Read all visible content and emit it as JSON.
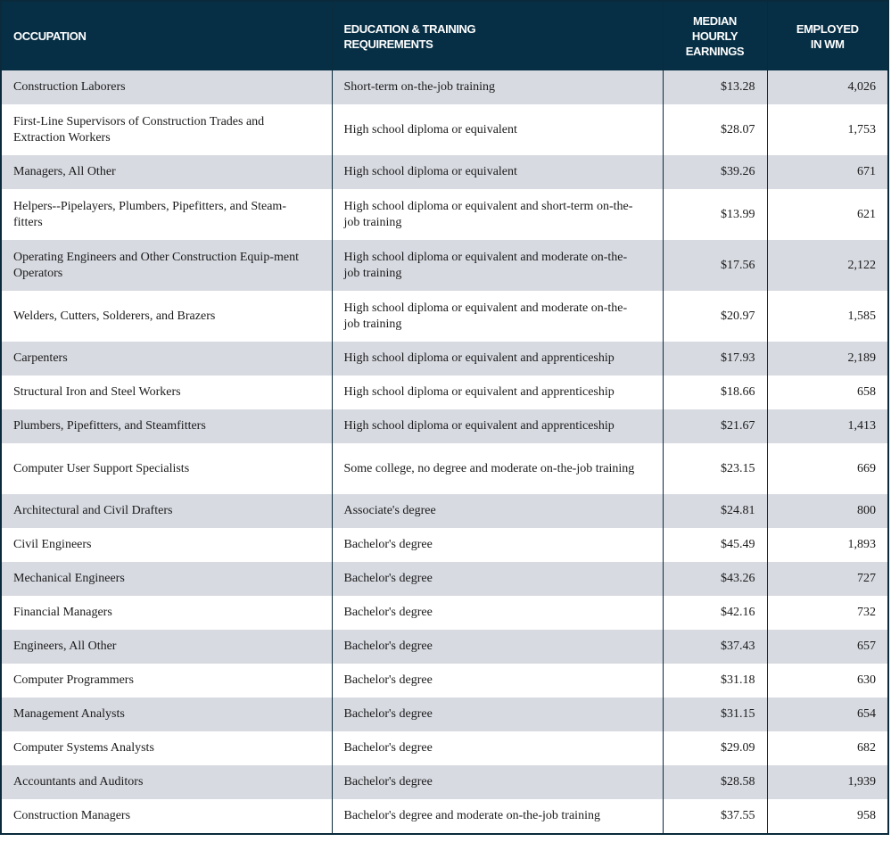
{
  "headers": [
    "OCCUPATION",
    "EDUCATION & TRAINING REQUIREMENTS",
    "MEDIAN HOURLY EARNINGS",
    "EMPLOYED IN WM"
  ],
  "rows": [
    {
      "occupation": "Construction Laborers",
      "education": "Short-term on-the-job training",
      "earnings": "$13.28",
      "employed": "4,026"
    },
    {
      "occupation": "First-Line Supervisors of Construction Trades and Extraction Workers",
      "education": "High school diploma or equivalent",
      "earnings": "$28.07",
      "employed": "1,753"
    },
    {
      "occupation": "Managers, All Other",
      "education": "High school diploma or equivalent",
      "earnings": "$39.26",
      "employed": "671"
    },
    {
      "occupation": "Helpers--Pipelayers, Plumbers, Pipefitters, and Steam-fitters",
      "education": "High school diploma or equivalent and short-term on-the-job training",
      "earnings": "$13.99",
      "employed": "621"
    },
    {
      "occupation": "Operating Engineers and Other Construction Equip-ment Operators",
      "education": "High school diploma or equivalent and moderate on-the-job training",
      "earnings": "$17.56",
      "employed": "2,122"
    },
    {
      "occupation": "Welders, Cutters, Solderers, and Brazers",
      "education": "High school diploma or equivalent and moderate on-the-job training",
      "earnings": "$20.97",
      "employed": "1,585"
    },
    {
      "occupation": "Carpenters",
      "education": "High school diploma or equivalent and apprenticeship",
      "earnings": "$17.93",
      "employed": "2,189"
    },
    {
      "occupation": "Structural Iron and Steel Workers",
      "education": "High school diploma or equivalent and apprenticeship",
      "earnings": "$18.66",
      "employed": "658"
    },
    {
      "occupation": "Plumbers, Pipefitters, and Steamfitters",
      "education": "High school diploma or equivalent and apprenticeship",
      "earnings": "$21.67",
      "employed": "1,413"
    },
    {
      "occupation": "Computer User Support Specialists",
      "education": "Some college, no degree and moderate on-the-job training",
      "earnings": "$23.15",
      "employed": "669"
    },
    {
      "occupation": "Architectural and Civil Drafters",
      "education": "Associate's degree",
      "earnings": "$24.81",
      "employed": "800"
    },
    {
      "occupation": "Civil Engineers",
      "education": "Bachelor's degree",
      "earnings": "$45.49",
      "employed": "1,893"
    },
    {
      "occupation": "Mechanical Engineers",
      "education": "Bachelor's degree",
      "earnings": "$43.26",
      "employed": "727"
    },
    {
      "occupation": "Financial Managers",
      "education": "Bachelor's degree",
      "earnings": "$42.16",
      "employed": "732"
    },
    {
      "occupation": "Engineers, All Other",
      "education": "Bachelor's degree",
      "earnings": "$37.43",
      "employed": "657"
    },
    {
      "occupation": "Computer Programmers",
      "education": "Bachelor's degree",
      "earnings": "$31.18",
      "employed": "630"
    },
    {
      "occupation": "Management Analysts",
      "education": "Bachelor's degree",
      "earnings": "$31.15",
      "employed": "654"
    },
    {
      "occupation": "Computer Systems Analysts",
      "education": "Bachelor's degree",
      "earnings": "$29.09",
      "employed": "682"
    },
    {
      "occupation": "Accountants and Auditors",
      "education": "Bachelor's degree",
      "earnings": "$28.58",
      "employed": "1,939"
    },
    {
      "occupation": "Construction Managers",
      "education": "Bachelor's degree and moderate on-the-job training",
      "earnings": "$37.55",
      "employed": "958"
    }
  ]
}
